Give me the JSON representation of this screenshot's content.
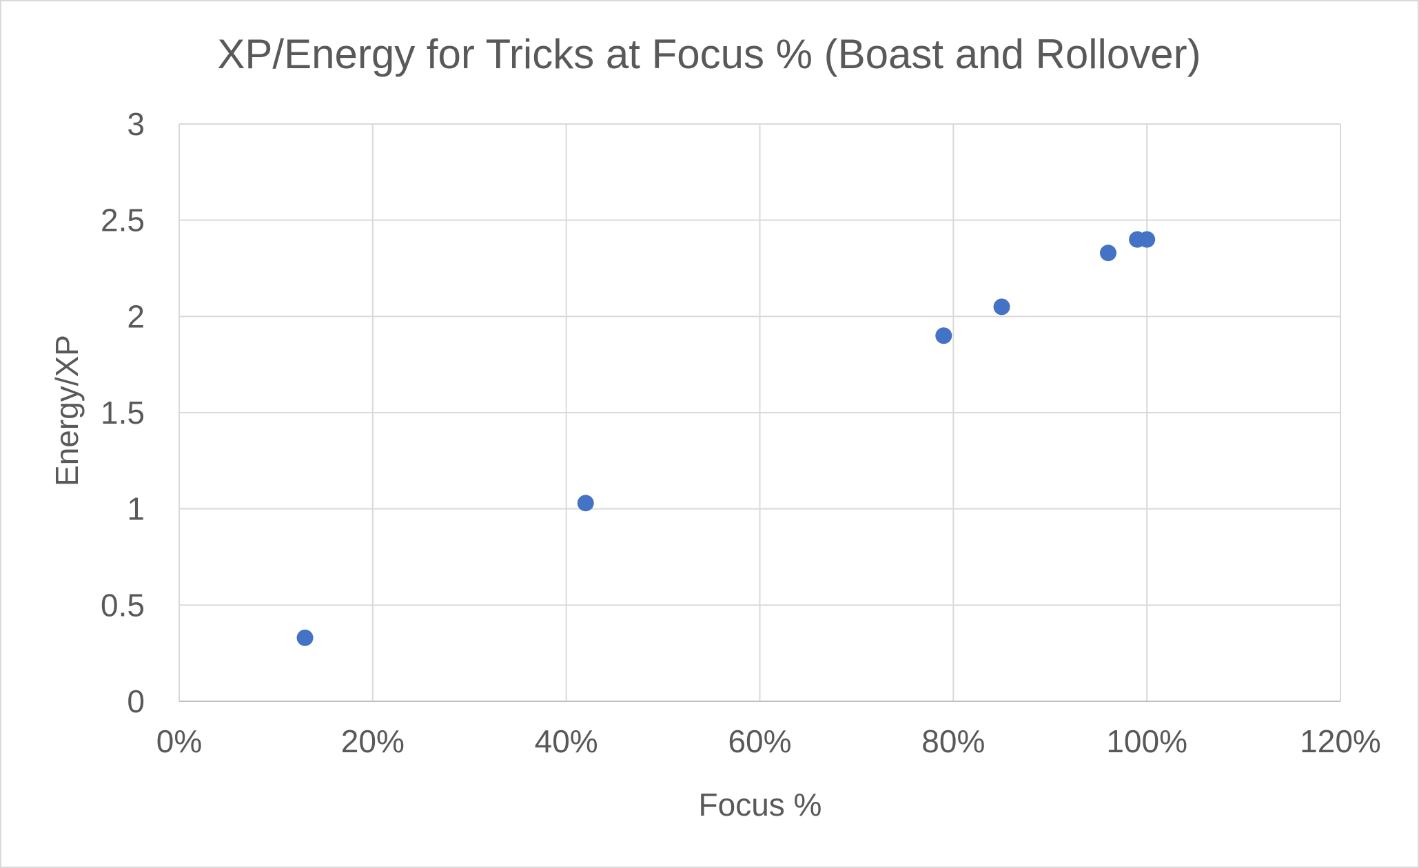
{
  "chart_data": {
    "type": "scatter",
    "title": "XP/Energy for Tricks at Focus % (Boast and Rollover)",
    "xlabel": "Focus %",
    "ylabel": "Energy/XP",
    "xlim": [
      0,
      1.2
    ],
    "ylim": [
      0,
      3
    ],
    "x_ticks": [
      0,
      0.2,
      0.4,
      0.6,
      0.8,
      1.0,
      1.2
    ],
    "x_tick_labels": [
      "0%",
      "20%",
      "40%",
      "60%",
      "80%",
      "100%",
      "120%"
    ],
    "y_ticks": [
      0,
      0.5,
      1,
      1.5,
      2,
      2.5,
      3
    ],
    "y_tick_labels": [
      "0",
      "0.5",
      "1",
      "1.5",
      "2",
      "2.5",
      "3"
    ],
    "grid": true,
    "legend": "none",
    "series": [
      {
        "color": "#4472c4",
        "points": [
          {
            "x": 0.13,
            "y": 0.33
          },
          {
            "x": 0.42,
            "y": 1.03
          },
          {
            "x": 0.79,
            "y": 1.9
          },
          {
            "x": 0.85,
            "y": 2.05
          },
          {
            "x": 0.96,
            "y": 2.33
          },
          {
            "x": 0.99,
            "y": 2.4
          },
          {
            "x": 1.0,
            "y": 2.4
          }
        ]
      }
    ]
  }
}
